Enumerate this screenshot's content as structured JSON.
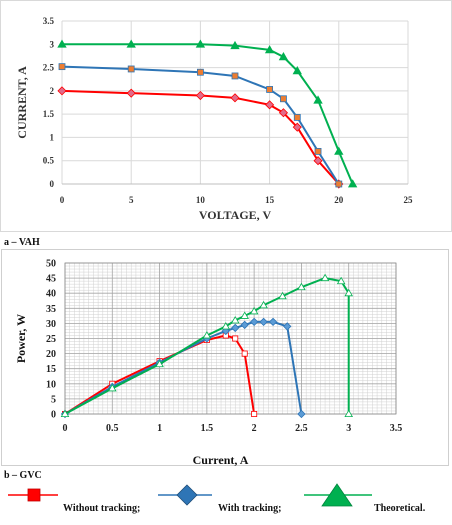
{
  "captions": {
    "a": "a – VAH",
    "b": "b – GVC"
  },
  "legend": [
    {
      "name": "Without tracking;",
      "color": "#ff0000",
      "marker": "square"
    },
    {
      "name": "With tracking;",
      "color": "#2e75b6",
      "marker": "diamond"
    },
    {
      "name": "Theoretical.",
      "color": "#00b050",
      "marker": "triangle"
    }
  ],
  "chart_data": [
    {
      "type": "line",
      "xlabel": "VOLTAGE, V",
      "ylabel": "CURRENT, A",
      "xlim": [
        0,
        25
      ],
      "ylim": [
        0,
        3.5
      ],
      "xticks": [
        "0",
        "5",
        "10",
        "15",
        "20",
        "25"
      ],
      "yticks": [
        "0",
        "0.5",
        "1",
        "1.5",
        "2",
        "2.5",
        "3",
        "3.5"
      ],
      "grid": true,
      "series": [
        {
          "color": "#ff0000",
          "marker": "diamond",
          "marker_fill": "#e26b8a",
          "points": [
            [
              0,
              2.0
            ],
            [
              5,
              1.95
            ],
            [
              10,
              1.9
            ],
            [
              12.5,
              1.85
            ],
            [
              15,
              1.7
            ],
            [
              16,
              1.53
            ],
            [
              17,
              1.22
            ],
            [
              18.5,
              0.5
            ],
            [
              20,
              0.0
            ]
          ]
        },
        {
          "color": "#2e75b6",
          "marker": "square",
          "marker_fill": "#ed7d31",
          "points": [
            [
              0,
              2.52
            ],
            [
              5,
              2.47
            ],
            [
              10,
              2.4
            ],
            [
              12.5,
              2.32
            ],
            [
              15,
              2.03
            ],
            [
              16,
              1.83
            ],
            [
              17,
              1.43
            ],
            [
              18.5,
              0.7
            ],
            [
              20,
              0.0
            ]
          ]
        },
        {
          "color": "#00b050",
          "marker": "triangle",
          "marker_fill": "#00b050",
          "points": [
            [
              0,
              3.0
            ],
            [
              5,
              3.0
            ],
            [
              10,
              3.0
            ],
            [
              12.5,
              2.97
            ],
            [
              15,
              2.88
            ],
            [
              16,
              2.73
            ],
            [
              17,
              2.43
            ],
            [
              18.5,
              1.8
            ],
            [
              20,
              0.7
            ],
            [
              21,
              0.0
            ]
          ]
        }
      ]
    },
    {
      "type": "line",
      "xlabel": "Current, A",
      "ylabel": "Power, W",
      "xlim": [
        0,
        3.5
      ],
      "ylim": [
        0,
        50
      ],
      "xticks": [
        "0",
        "0.5",
        "1",
        "1.5",
        "2",
        "2.5",
        "3",
        "3.5"
      ],
      "yticks": [
        "0",
        "5",
        "10",
        "15",
        "20",
        "25",
        "30",
        "35",
        "40",
        "45",
        "50"
      ],
      "grid": true,
      "series": [
        {
          "name": "Without tracking;",
          "color": "#ff0000",
          "marker": "square",
          "points": [
            [
              0,
              0
            ],
            [
              0.5,
              10
            ],
            [
              1.0,
              17.5
            ],
            [
              1.5,
              24.5
            ],
            [
              1.7,
              26
            ],
            [
              1.8,
              25
            ],
            [
              1.9,
              20
            ],
            [
              2.0,
              0
            ]
          ]
        },
        {
          "name": "With tracking;",
          "color": "#2e75b6",
          "marker": "diamond",
          "points": [
            [
              0,
              0
            ],
            [
              0.5,
              9
            ],
            [
              1.0,
              17
            ],
            [
              1.5,
              25
            ],
            [
              1.7,
              27.5
            ],
            [
              1.8,
              28.5
            ],
            [
              1.9,
              29.5
            ],
            [
              2.0,
              30.5
            ],
            [
              2.1,
              30.5
            ],
            [
              2.2,
              30.5
            ],
            [
              2.35,
              29
            ],
            [
              2.5,
              0
            ]
          ]
        },
        {
          "name": "Theoretical.",
          "color": "#00b050",
          "marker": "triangle",
          "points": [
            [
              0,
              0
            ],
            [
              0.5,
              8.5
            ],
            [
              1.0,
              16.5
            ],
            [
              1.5,
              26
            ],
            [
              1.7,
              29
            ],
            [
              1.8,
              31
            ],
            [
              1.9,
              32.5
            ],
            [
              2.0,
              34
            ],
            [
              2.1,
              36
            ],
            [
              2.3,
              39
            ],
            [
              2.5,
              42
            ],
            [
              2.75,
              45
            ],
            [
              2.92,
              44
            ],
            [
              3.0,
              40
            ],
            [
              3.0,
              0
            ]
          ]
        }
      ]
    }
  ]
}
